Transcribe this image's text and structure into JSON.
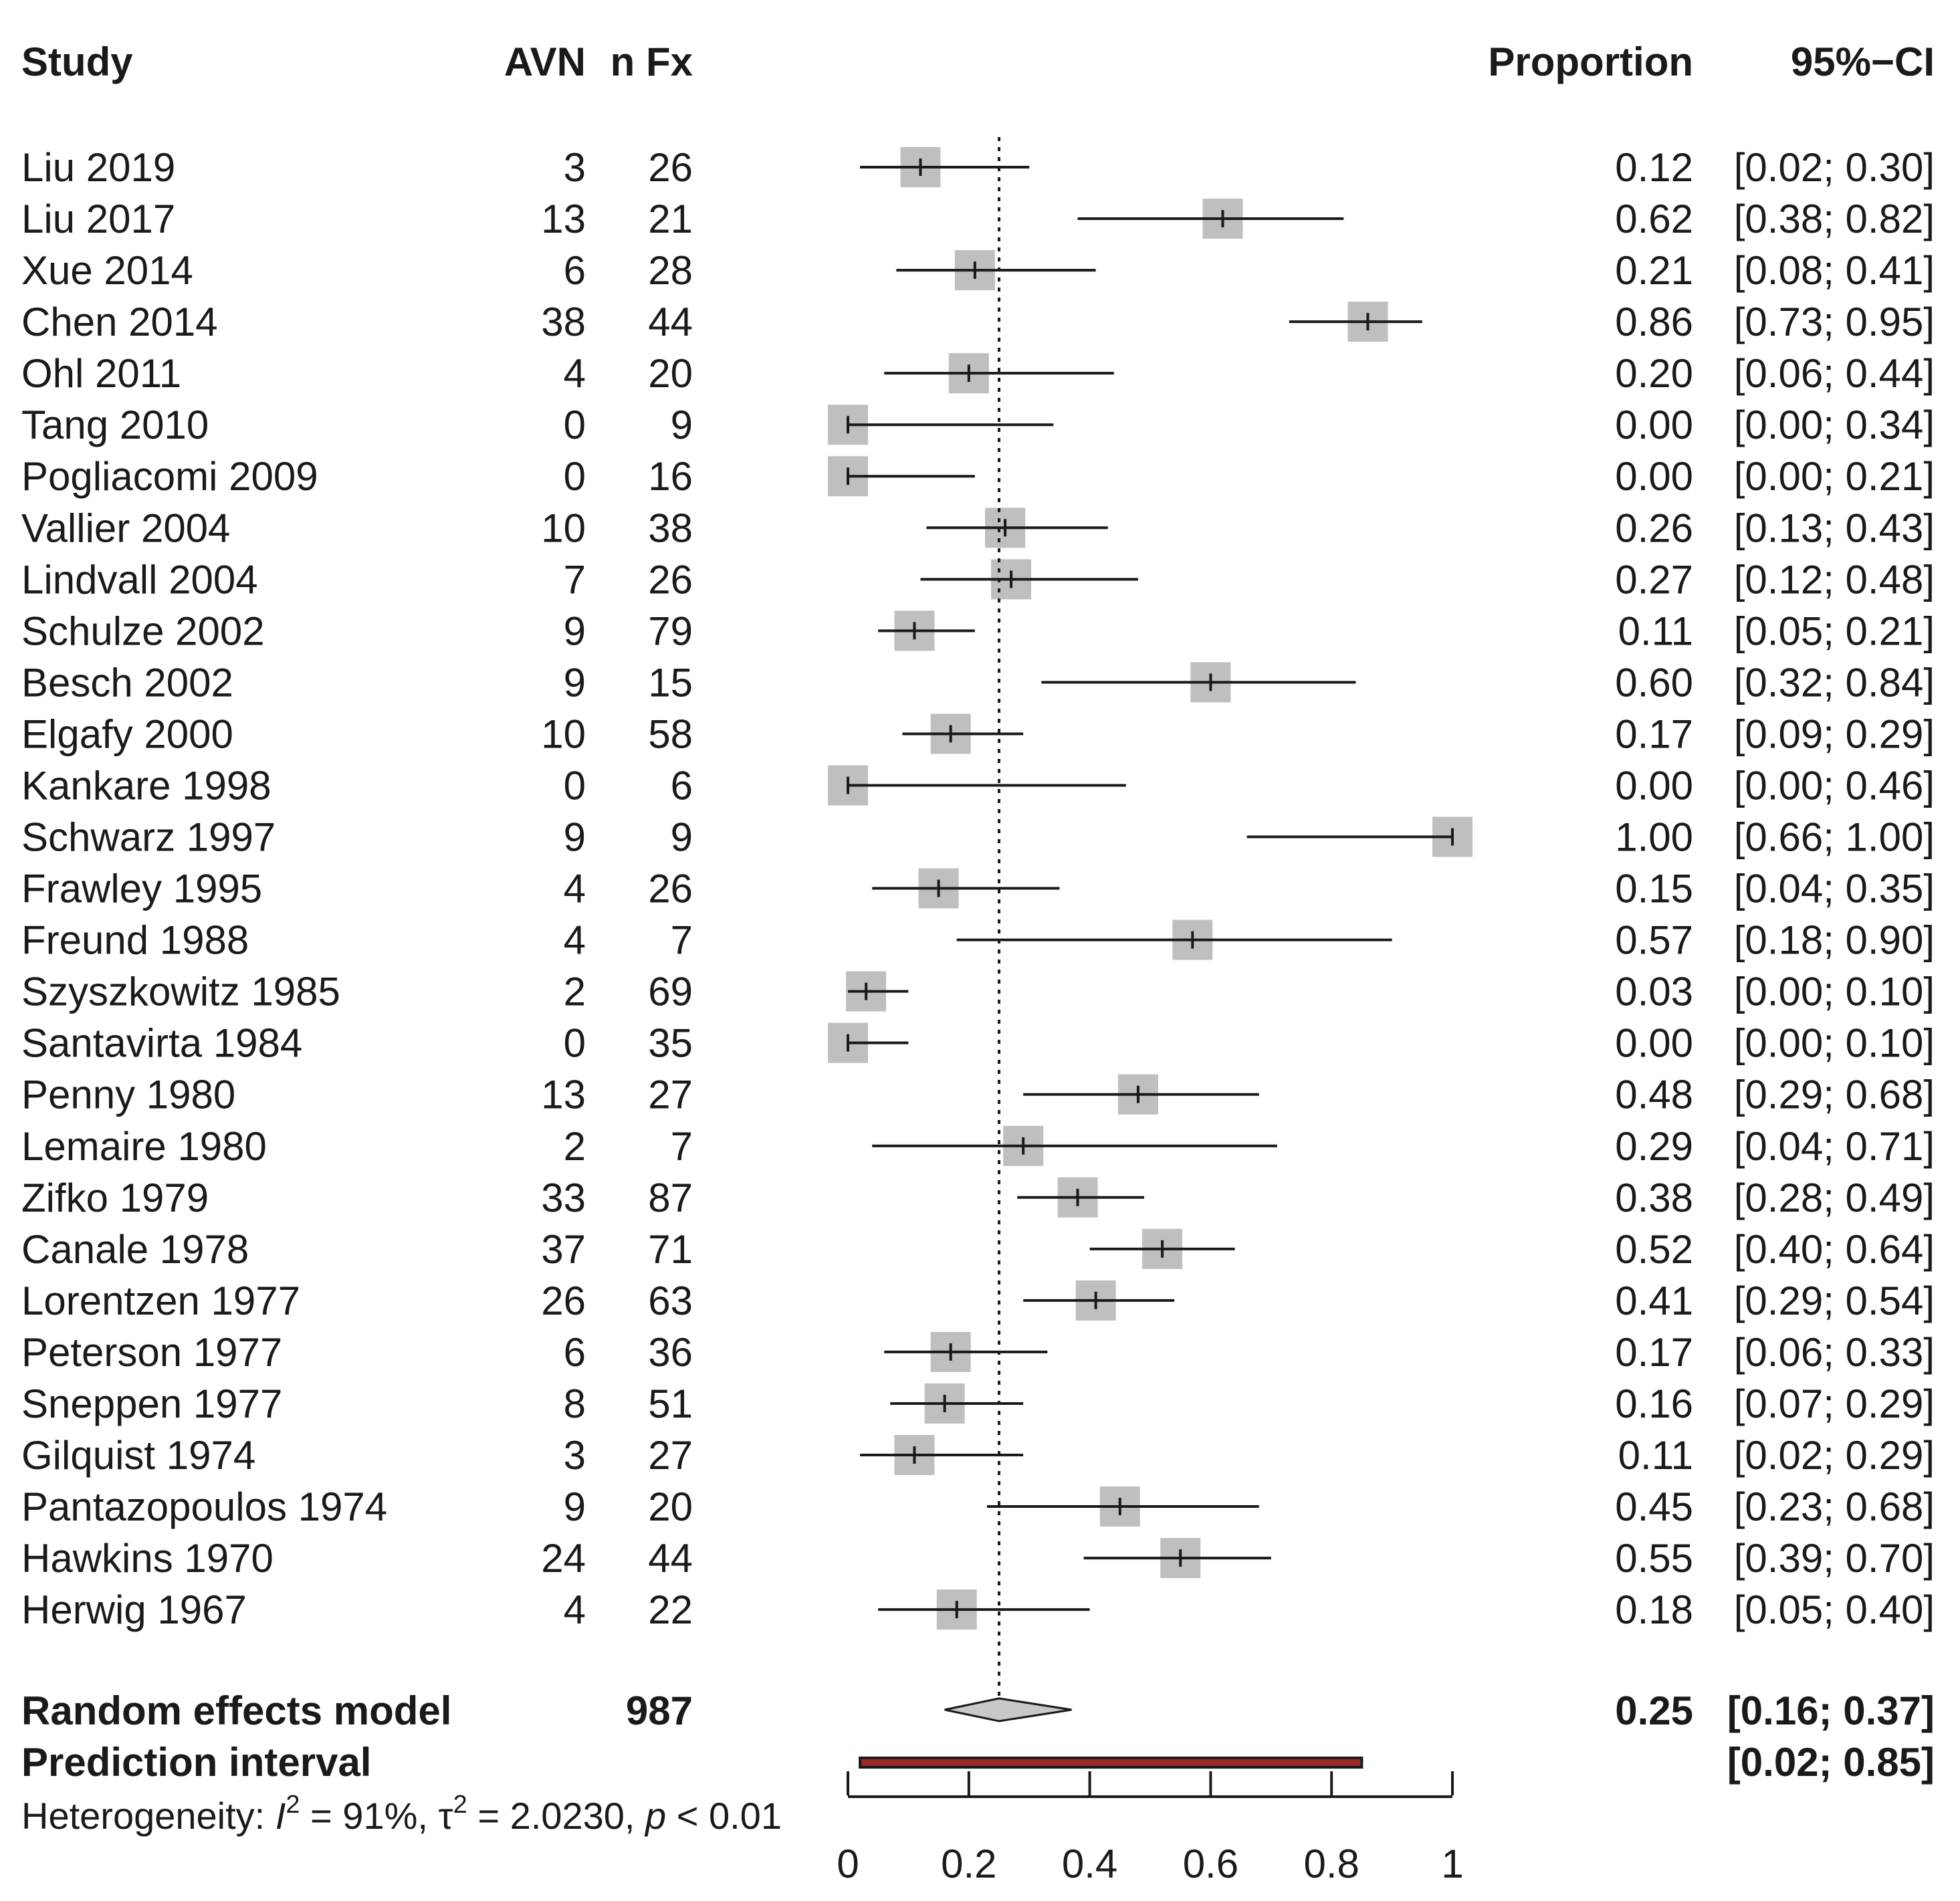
{
  "header": {
    "study": "Study",
    "avn": "AVN",
    "n_fx": "n Fx",
    "proportion": "Proportion",
    "ci": "95%−CI"
  },
  "chart_data": {
    "type": "forest",
    "x_axis": {
      "range": [
        0,
        1
      ],
      "ticks": [
        "0",
        "0.2",
        "0.4",
        "0.6",
        "0.8",
        "1"
      ],
      "tick_values": [
        0,
        0.2,
        0.4,
        0.6,
        0.8,
        1
      ]
    },
    "reference_line": 0.25,
    "studies": [
      {
        "name": "Liu 2019",
        "avn": "3",
        "n": "26",
        "prop": 0.12,
        "lo": 0.02,
        "hi": 0.3,
        "prop_text": "0.12",
        "ci_text": "[0.02; 0.30]"
      },
      {
        "name": "Liu 2017",
        "avn": "13",
        "n": "21",
        "prop": 0.62,
        "lo": 0.38,
        "hi": 0.82,
        "prop_text": "0.62",
        "ci_text": "[0.38; 0.82]"
      },
      {
        "name": "Xue 2014",
        "avn": "6",
        "n": "28",
        "prop": 0.21,
        "lo": 0.08,
        "hi": 0.41,
        "prop_text": "0.21",
        "ci_text": "[0.08; 0.41]"
      },
      {
        "name": "Chen 2014",
        "avn": "38",
        "n": "44",
        "prop": 0.86,
        "lo": 0.73,
        "hi": 0.95,
        "prop_text": "0.86",
        "ci_text": "[0.73; 0.95]"
      },
      {
        "name": "Ohl 2011",
        "avn": "4",
        "n": "20",
        "prop": 0.2,
        "lo": 0.06,
        "hi": 0.44,
        "prop_text": "0.20",
        "ci_text": "[0.06; 0.44]"
      },
      {
        "name": "Tang 2010",
        "avn": "0",
        "n": "9",
        "prop": 0.0,
        "lo": 0.0,
        "hi": 0.34,
        "prop_text": "0.00",
        "ci_text": "[0.00; 0.34]"
      },
      {
        "name": "Pogliacomi 2009",
        "avn": "0",
        "n": "16",
        "prop": 0.0,
        "lo": 0.0,
        "hi": 0.21,
        "prop_text": "0.00",
        "ci_text": "[0.00; 0.21]"
      },
      {
        "name": "Vallier 2004",
        "avn": "10",
        "n": "38",
        "prop": 0.26,
        "lo": 0.13,
        "hi": 0.43,
        "prop_text": "0.26",
        "ci_text": "[0.13; 0.43]"
      },
      {
        "name": "Lindvall 2004",
        "avn": "7",
        "n": "26",
        "prop": 0.27,
        "lo": 0.12,
        "hi": 0.48,
        "prop_text": "0.27",
        "ci_text": "[0.12; 0.48]"
      },
      {
        "name": "Schulze 2002",
        "avn": "9",
        "n": "79",
        "prop": 0.11,
        "lo": 0.05,
        "hi": 0.21,
        "prop_text": "0.11",
        "ci_text": "[0.05; 0.21]"
      },
      {
        "name": "Besch 2002",
        "avn": "9",
        "n": "15",
        "prop": 0.6,
        "lo": 0.32,
        "hi": 0.84,
        "prop_text": "0.60",
        "ci_text": "[0.32; 0.84]"
      },
      {
        "name": "Elgafy 2000",
        "avn": "10",
        "n": "58",
        "prop": 0.17,
        "lo": 0.09,
        "hi": 0.29,
        "prop_text": "0.17",
        "ci_text": "[0.09; 0.29]"
      },
      {
        "name": "Kankare 1998",
        "avn": "0",
        "n": "6",
        "prop": 0.0,
        "lo": 0.0,
        "hi": 0.46,
        "prop_text": "0.00",
        "ci_text": "[0.00; 0.46]"
      },
      {
        "name": "Schwarz 1997",
        "avn": "9",
        "n": "9",
        "prop": 1.0,
        "lo": 0.66,
        "hi": 1.0,
        "prop_text": "1.00",
        "ci_text": "[0.66; 1.00]"
      },
      {
        "name": "Frawley 1995",
        "avn": "4",
        "n": "26",
        "prop": 0.15,
        "lo": 0.04,
        "hi": 0.35,
        "prop_text": "0.15",
        "ci_text": "[0.04; 0.35]"
      },
      {
        "name": "Freund 1988",
        "avn": "4",
        "n": "7",
        "prop": 0.57,
        "lo": 0.18,
        "hi": 0.9,
        "prop_text": "0.57",
        "ci_text": "[0.18; 0.90]"
      },
      {
        "name": "Szyszkowitz 1985",
        "avn": "2",
        "n": "69",
        "prop": 0.03,
        "lo": 0.0,
        "hi": 0.1,
        "prop_text": "0.03",
        "ci_text": "[0.00; 0.10]"
      },
      {
        "name": "Santavirta 1984",
        "avn": "0",
        "n": "35",
        "prop": 0.0,
        "lo": 0.0,
        "hi": 0.1,
        "prop_text": "0.00",
        "ci_text": "[0.00; 0.10]"
      },
      {
        "name": "Penny 1980",
        "avn": "13",
        "n": "27",
        "prop": 0.48,
        "lo": 0.29,
        "hi": 0.68,
        "prop_text": "0.48",
        "ci_text": "[0.29; 0.68]"
      },
      {
        "name": "Lemaire 1980",
        "avn": "2",
        "n": "7",
        "prop": 0.29,
        "lo": 0.04,
        "hi": 0.71,
        "prop_text": "0.29",
        "ci_text": "[0.04; 0.71]"
      },
      {
        "name": "Zifko 1979",
        "avn": "33",
        "n": "87",
        "prop": 0.38,
        "lo": 0.28,
        "hi": 0.49,
        "prop_text": "0.38",
        "ci_text": "[0.28; 0.49]"
      },
      {
        "name": "Canale 1978",
        "avn": "37",
        "n": "71",
        "prop": 0.52,
        "lo": 0.4,
        "hi": 0.64,
        "prop_text": "0.52",
        "ci_text": "[0.40; 0.64]"
      },
      {
        "name": "Lorentzen 1977",
        "avn": "26",
        "n": "63",
        "prop": 0.41,
        "lo": 0.29,
        "hi": 0.54,
        "prop_text": "0.41",
        "ci_text": "[0.29; 0.54]"
      },
      {
        "name": "Peterson 1977",
        "avn": "6",
        "n": "36",
        "prop": 0.17,
        "lo": 0.06,
        "hi": 0.33,
        "prop_text": "0.17",
        "ci_text": "[0.06; 0.33]"
      },
      {
        "name": "Sneppen 1977",
        "avn": "8",
        "n": "51",
        "prop": 0.16,
        "lo": 0.07,
        "hi": 0.29,
        "prop_text": "0.16",
        "ci_text": "[0.07; 0.29]"
      },
      {
        "name": "Gilquist 1974",
        "avn": "3",
        "n": "27",
        "prop": 0.11,
        "lo": 0.02,
        "hi": 0.29,
        "prop_text": "0.11",
        "ci_text": "[0.02; 0.29]"
      },
      {
        "name": "Pantazopoulos 1974",
        "avn": "9",
        "n": "20",
        "prop": 0.45,
        "lo": 0.23,
        "hi": 0.68,
        "prop_text": "0.45",
        "ci_text": "[0.23; 0.68]"
      },
      {
        "name": "Hawkins 1970",
        "avn": "24",
        "n": "44",
        "prop": 0.55,
        "lo": 0.39,
        "hi": 0.7,
        "prop_text": "0.55",
        "ci_text": "[0.39; 0.70]"
      },
      {
        "name": "Herwig 1967",
        "avn": "4",
        "n": "22",
        "prop": 0.18,
        "lo": 0.05,
        "hi": 0.4,
        "prop_text": "0.18",
        "ci_text": "[0.05; 0.40]"
      }
    ],
    "random_effects": {
      "label": "Random effects model",
      "total": "987",
      "prop": 0.25,
      "lo": 0.16,
      "hi": 0.37,
      "prop_text": "0.25",
      "ci_text": "[0.16; 0.37]"
    },
    "prediction_interval": {
      "label": "Prediction interval",
      "lo": 0.02,
      "hi": 0.85,
      "ci_text": "[0.02; 0.85]"
    },
    "heterogeneity": {
      "prefix": "Heterogeneity: ",
      "i_symbol": "I",
      "i_value": " = 91%, ",
      "tau_symbol": "τ",
      "tau_value": " = 2.0230, ",
      "p_symbol": "p",
      "p_value": " < 0.01"
    },
    "colors": {
      "square": "#bfbfbf",
      "line": "#1a1a1a",
      "diamond": "#c8c8c8",
      "prediction_fill": "#9b2a2a"
    }
  }
}
